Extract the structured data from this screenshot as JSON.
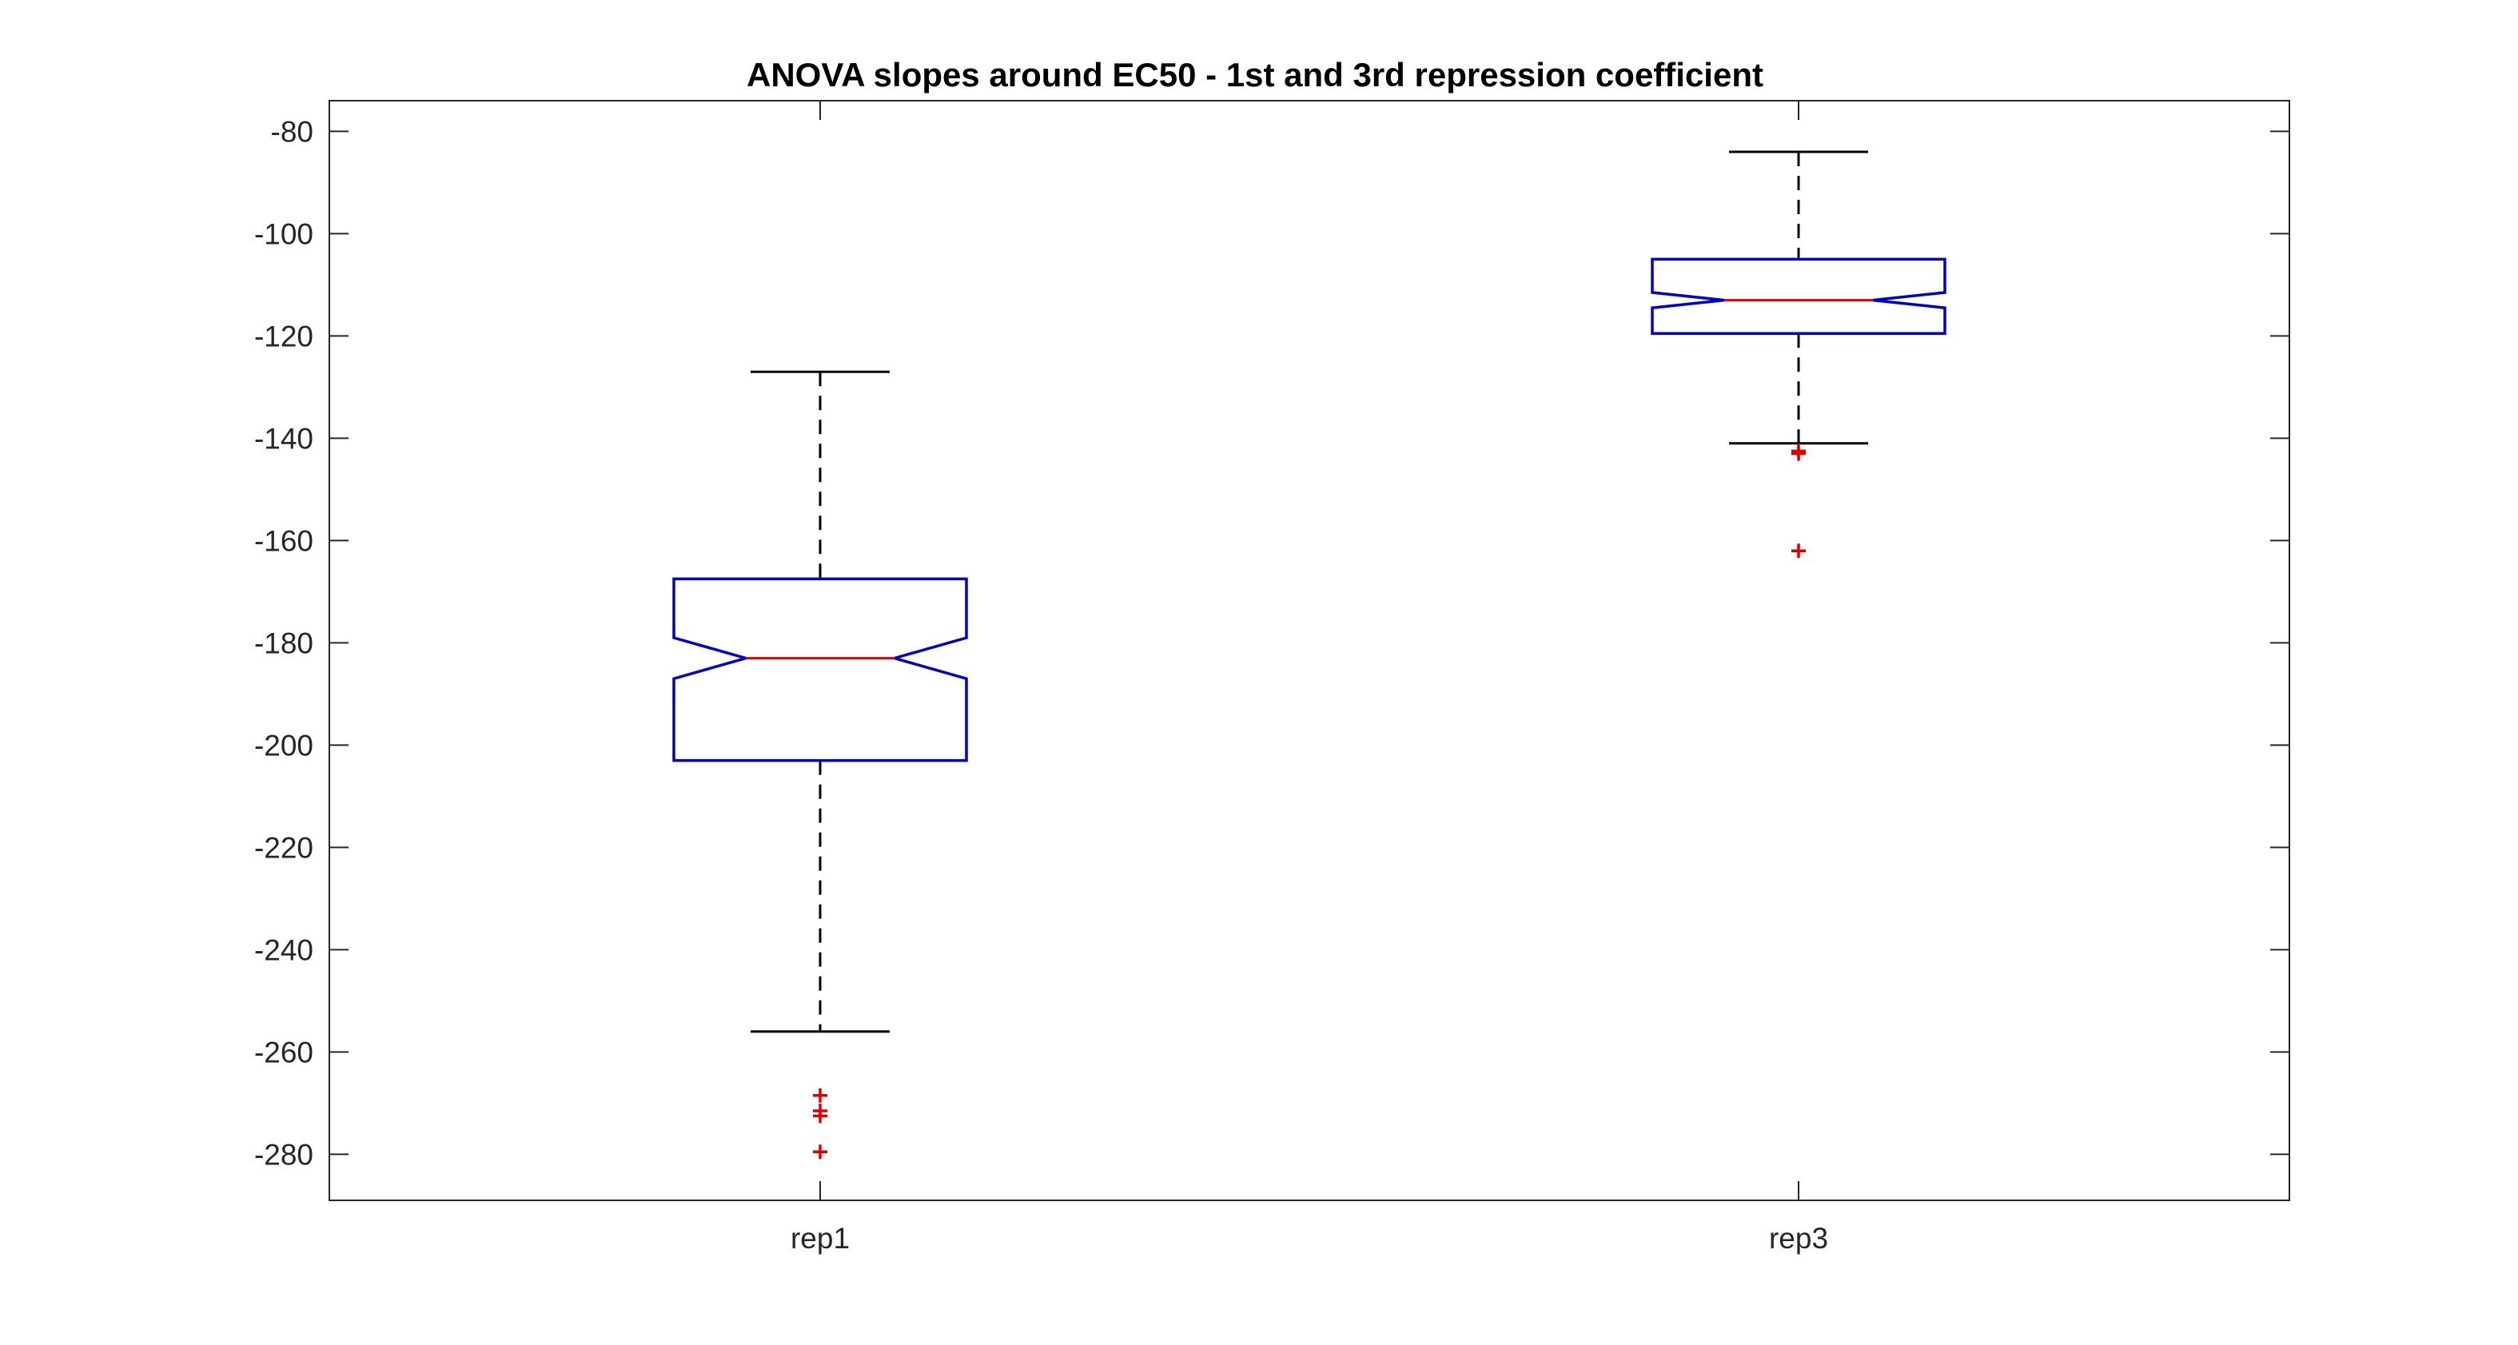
{
  "chart_data": {
    "type": "boxplot",
    "title": "ANOVA slopes around EC50 - 1st and 3rd repression coefficient",
    "xlabel": "",
    "ylabel": "",
    "categories": [
      "rep1",
      "rep3"
    ],
    "ylim": [
      -289,
      -74
    ],
    "yticks": [
      -80,
      -100,
      -120,
      -140,
      -160,
      -180,
      -200,
      -220,
      -240,
      -260,
      -280
    ],
    "notched": true,
    "grid": false,
    "boxes": [
      {
        "category": "rep1",
        "whisker_high": -127,
        "q3": -167.5,
        "notch_high": -179,
        "median": -183,
        "notch_low": -187,
        "q1": -203,
        "whisker_low": -256,
        "outliers": [
          -268.5,
          -271.5,
          -272.5,
          -279.5
        ]
      },
      {
        "category": "rep3",
        "whisker_high": -84,
        "q3": -105,
        "notch_high": -111.5,
        "median": -113,
        "notch_low": -114.5,
        "q1": -119.5,
        "whisker_low": -141,
        "outliers": [
          -142.5,
          -143,
          -162
        ]
      }
    ],
    "colors": {
      "box": "#0000cc",
      "median": "#e00000",
      "whisker": "#000000",
      "outlier": "#e00000",
      "axes": "#262626"
    }
  }
}
